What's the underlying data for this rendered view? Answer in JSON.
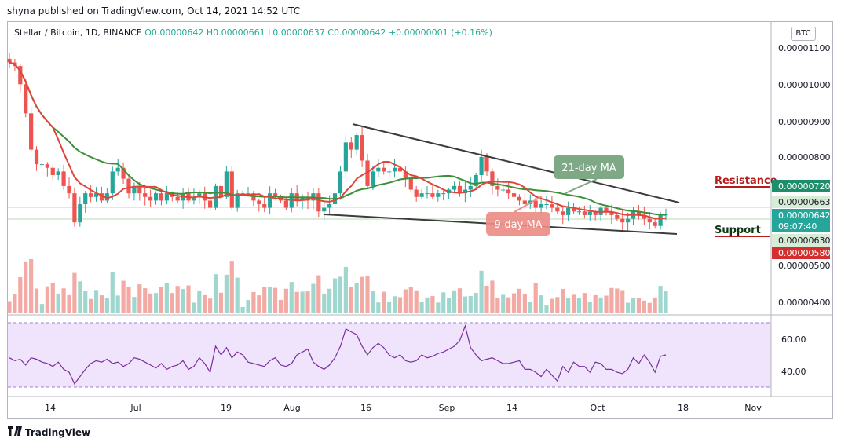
{
  "header": {
    "text": "shyna published on TradingView.com, Oct 14, 2021 14:52 UTC"
  },
  "legend": {
    "symbol": "Stellar / Bitcoin, 1D, BINANCE",
    "open": "O0.00000642",
    "high": "H0.00000661",
    "low": "L0.00000637",
    "close": "C0.00000642",
    "change": "+0.00000001 (+0.16%)"
  },
  "currency": "BTC",
  "footer": {
    "logo_text": "TradingView"
  },
  "chart_data": [
    {
      "type": "candlestick",
      "y_axis": {
        "labels": [
          "0.00001100",
          "0.00001000",
          "0.00000900",
          "0.00000800",
          "0.00000500",
          "0.00000400"
        ],
        "ylim": [
          3.7e-06,
          1.15e-05
        ]
      },
      "x_axis": {
        "labels": [
          "14",
          "Jul",
          "19",
          "Aug",
          "16",
          "Sep",
          "14",
          "Oct",
          "18",
          "Nov"
        ]
      },
      "price_labels": [
        {
          "text": "0.00000720",
          "color": "#22ab94"
        },
        {
          "text": "0.00000663",
          "color": "#e8f5e9"
        },
        {
          "text": "0.00000642",
          "color": "#26a69a"
        },
        {
          "text": "09:07:40",
          "color": "#26a69a"
        },
        {
          "text": "0.00000630",
          "color": "#e8f5e9"
        },
        {
          "text": "0.00000580",
          "color": "#ef5350"
        }
      ],
      "annotations": {
        "ma21": "21-day MA",
        "ma9": "9-day MA",
        "resistance": "Resistance",
        "support": "Support"
      },
      "colors": {
        "up": "#26a69a",
        "down": "#ef5350",
        "ma9": "#e0453a",
        "ma21": "#3d8f3a",
        "trend": "#3c3c3c"
      },
      "closes": [
        1060,
        1050,
        1000,
        920,
        820,
        780,
        780,
        770,
        750,
        760,
        720,
        700,
        620,
        670,
        700,
        690,
        700,
        680,
        700,
        760,
        770,
        740,
        700,
        720,
        700,
        690,
        680,
        700,
        680,
        700,
        690,
        680,
        700,
        680,
        690,
        700,
        680,
        660,
        720,
        690,
        760,
        660,
        700,
        700,
        700,
        680,
        670,
        660,
        700,
        690,
        680,
        660,
        700,
        680,
        690,
        680,
        700,
        650,
        660,
        670,
        700,
        760,
        840,
        820,
        860,
        790,
        720,
        760,
        770,
        760,
        760,
        770,
        760,
        740,
        710,
        690,
        700,
        700,
        690,
        700,
        700,
        710,
        720,
        700,
        710,
        720,
        750,
        800,
        760,
        720,
        710,
        710,
        700,
        690,
        680,
        670,
        680,
        660,
        670,
        670,
        660,
        650,
        640,
        660,
        650,
        650,
        640,
        650,
        640,
        660,
        650,
        640,
        630,
        620,
        630,
        650,
        640,
        630,
        620,
        610,
        642,
        642
      ]
    },
    {
      "type": "line",
      "name": "RSI",
      "y_axis": {
        "labels": [
          "60.00",
          "40.00"
        ],
        "ylim": [
          25,
          75
        ]
      },
      "values": [
        48,
        46,
        47,
        43,
        48,
        47,
        45,
        44,
        42,
        45,
        40,
        38,
        30,
        35,
        40,
        44,
        46,
        45,
        47,
        44,
        45,
        42,
        44,
        48,
        47,
        45,
        43,
        41,
        44,
        40,
        42,
        43,
        46,
        40,
        42,
        48,
        44,
        38,
        56,
        50,
        55,
        48,
        52,
        50,
        45,
        44,
        43,
        42,
        46,
        48,
        43,
        42,
        44,
        50,
        52,
        54,
        45,
        42,
        40,
        43,
        48,
        56,
        68,
        66,
        64,
        56,
        50,
        55,
        58,
        55,
        50,
        48,
        50,
        46,
        45,
        46,
        50,
        48,
        49,
        51,
        52,
        54,
        56,
        60,
        70,
        55,
        50,
        46,
        47,
        48,
        46,
        44,
        44,
        45,
        46,
        40,
        40,
        38,
        35,
        40,
        36,
        32,
        42,
        38,
        45,
        42,
        42,
        38,
        45,
        44,
        40,
        40,
        38,
        37,
        40,
        48,
        44,
        50,
        45,
        38,
        49,
        50
      ]
    }
  ]
}
